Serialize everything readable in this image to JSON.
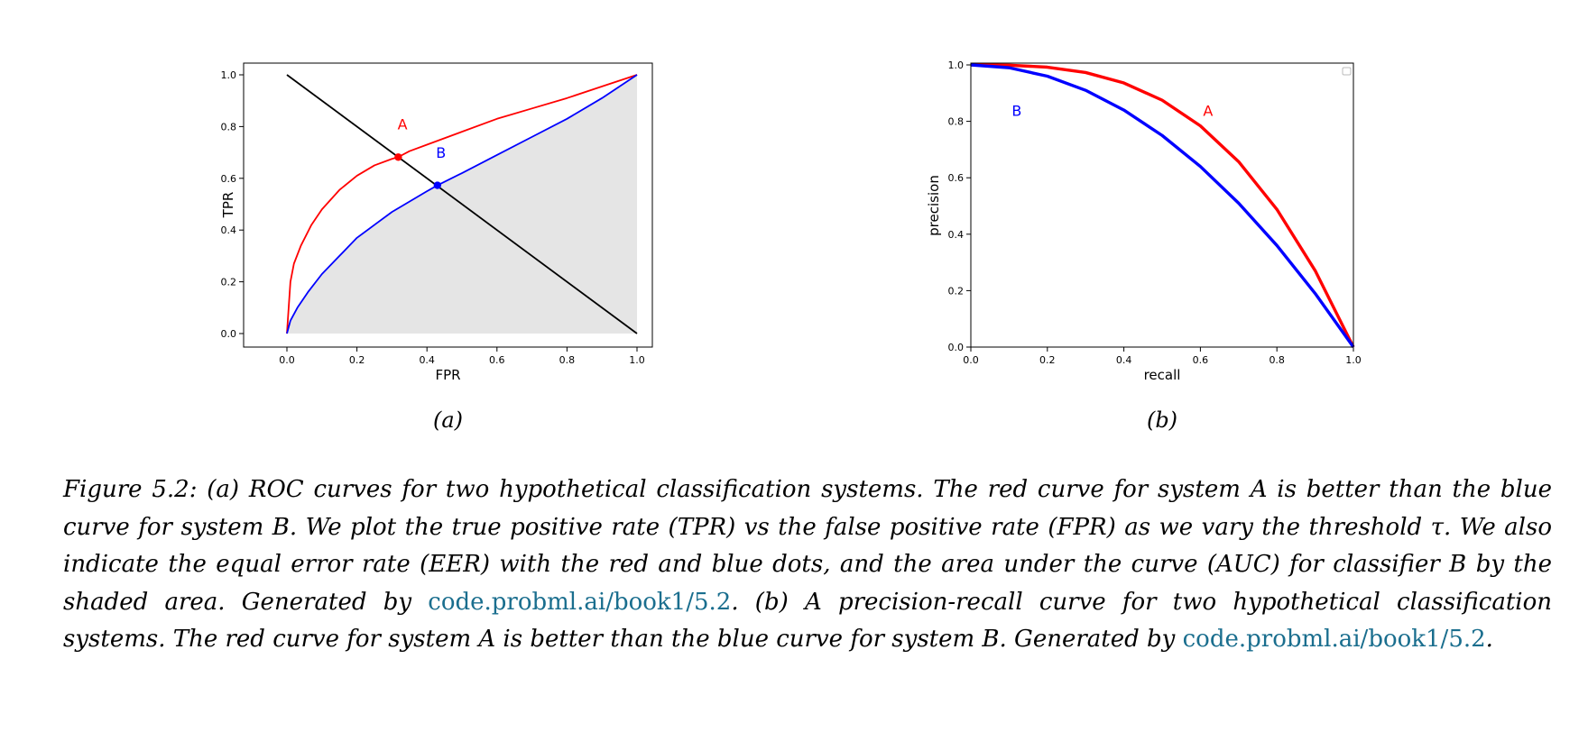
{
  "chart_data": [
    {
      "type": "line",
      "panel_label": "(a)",
      "xlabel": "FPR",
      "ylabel": "TPR",
      "xlim": [
        0,
        1
      ],
      "ylim": [
        0,
        1
      ],
      "xticks": [
        "0.0",
        "0.2",
        "0.4",
        "0.6",
        "0.8",
        "1.0"
      ],
      "yticks": [
        "0.0",
        "0.2",
        "0.4",
        "0.6",
        "0.8",
        "1.0"
      ],
      "grid": false,
      "series": [
        {
          "annotation": "A",
          "color": "#ff0000",
          "x": [
            0.0,
            0.005,
            0.01,
            0.02,
            0.04,
            0.07,
            0.1,
            0.15,
            0.2,
            0.25,
            0.3,
            0.318,
            0.35,
            0.4,
            0.5,
            0.6,
            0.7,
            0.8,
            0.9,
            1.0
          ],
          "y": [
            0.0,
            0.1,
            0.2,
            0.27,
            0.34,
            0.42,
            0.48,
            0.555,
            0.61,
            0.65,
            0.675,
            0.682,
            0.705,
            0.73,
            0.78,
            0.83,
            0.87,
            0.91,
            0.955,
            1.0
          ]
        },
        {
          "annotation": "B",
          "color": "#0000ff",
          "x": [
            0.0,
            0.01,
            0.03,
            0.06,
            0.1,
            0.15,
            0.2,
            0.25,
            0.3,
            0.35,
            0.4,
            0.43,
            0.5,
            0.6,
            0.7,
            0.8,
            0.9,
            1.0
          ],
          "y": [
            0.0,
            0.05,
            0.1,
            0.16,
            0.23,
            0.3,
            0.37,
            0.42,
            0.47,
            0.51,
            0.55,
            0.573,
            0.62,
            0.69,
            0.76,
            0.83,
            0.91,
            1.0
          ]
        },
        {
          "color": "#000000",
          "x": [
            0.0,
            1.0
          ],
          "y": [
            1.0,
            0.0
          ]
        }
      ],
      "eer_points": [
        {
          "x": 0.318,
          "y": 0.682,
          "color": "#ff0000"
        },
        {
          "x": 0.43,
          "y": 0.573,
          "color": "#0000ff"
        }
      ],
      "shaded_area_under": "B",
      "shade_color": "#e5e5e5",
      "annotations": [
        {
          "text": "A",
          "x": 0.33,
          "y": 0.79,
          "color": "#ff0000"
        },
        {
          "text": "B",
          "x": 0.44,
          "y": 0.68,
          "color": "#0000ff"
        }
      ]
    },
    {
      "type": "line",
      "panel_label": "(b)",
      "xlabel": "recall",
      "ylabel": "precision",
      "xlim": [
        0,
        1
      ],
      "ylim": [
        0,
        1
      ],
      "xticks": [
        "0.0",
        "0.2",
        "0.4",
        "0.6",
        "0.8",
        "1.0"
      ],
      "yticks": [
        "0.0",
        "0.2",
        "0.4",
        "0.6",
        "0.8",
        "1.0"
      ],
      "grid": false,
      "legend": "top-right (empty)",
      "series": [
        {
          "annotation": "A",
          "color": "#ff0000",
          "x": [
            0.0,
            0.1,
            0.2,
            0.3,
            0.4,
            0.5,
            0.6,
            0.7,
            0.8,
            0.9,
            1.0
          ],
          "y": [
            1.0,
            0.999,
            0.992,
            0.973,
            0.936,
            0.875,
            0.784,
            0.657,
            0.488,
            0.271,
            0.0
          ]
        },
        {
          "annotation": "B",
          "color": "#0000ff",
          "x": [
            0.0,
            0.1,
            0.2,
            0.3,
            0.4,
            0.5,
            0.6,
            0.7,
            0.8,
            0.9,
            1.0
          ],
          "y": [
            1.0,
            0.99,
            0.96,
            0.91,
            0.84,
            0.75,
            0.64,
            0.51,
            0.36,
            0.19,
            0.0
          ]
        }
      ],
      "annotations": [
        {
          "text": "B",
          "x": 0.12,
          "y": 0.82,
          "color": "#0000ff"
        },
        {
          "text": "A",
          "x": 0.62,
          "y": 0.82,
          "color": "#ff0000"
        }
      ]
    }
  ],
  "caption": {
    "part1": "Figure 5.2: (a) ROC curves for two hypothetical classification systems. The red curve for system A is better than the blue curve for system B. We plot the true positive rate (TPR) vs the false positive rate (FPR) as we vary the threshold τ. We also indicate the equal error rate (EER) with the red and blue dots, and the area under the curve (AUC) for classifier B by the shaded area. Generated by ",
    "link1": "code.probml.ai/book1/5.2",
    "part2": ". (b) A precision-recall curve for two hypothetical classification systems. The red curve for system A is better than the blue curve for system B. Generated by ",
    "link2": "code.probml.ai/book1/5.2",
    "part3": "."
  }
}
